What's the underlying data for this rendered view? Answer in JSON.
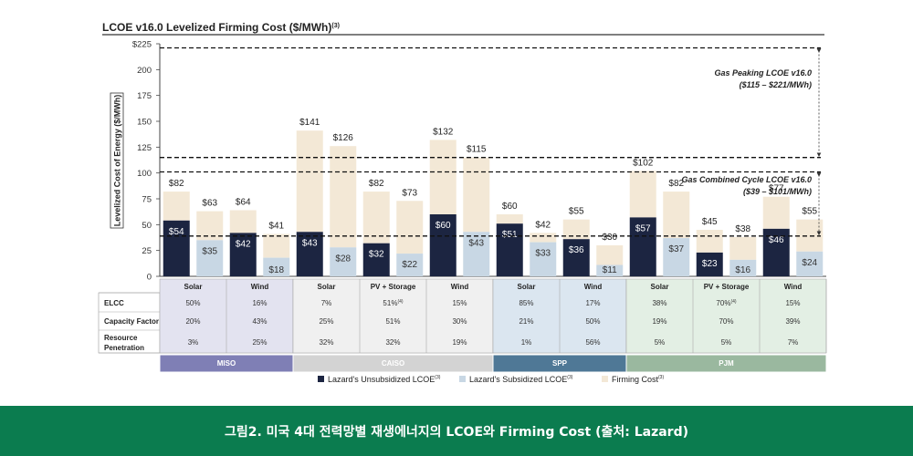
{
  "title": "LCOE v16.0 Levelized Firming Cost ($/MWh)",
  "title_sup": "(3)",
  "caption": "그림2. 미국 4대 전력망별 재생에너지의 LCOE와 Firming Cost (출처: Lazard)",
  "colors": {
    "unsubsidized": "#1c2541",
    "subsidized": "#c8d7e4",
    "firming": "#f3e8d6",
    "MISO": "#7f7fb5",
    "CAISO": "#d3d3d3",
    "SPP": "#4f7896",
    "PJM": "#9ab89f",
    "MISO_bg": "#e3e3f0",
    "CAISO_bg": "#f0f0f0",
    "SPP_bg": "#dbe6f0",
    "PJM_bg": "#e3efe4"
  },
  "chart_data": {
    "type": "bar",
    "title": "LCOE v16.0 Levelized Firming Cost ($/MWh)",
    "ylabel": "Levelized Cost of Energy ($/MWh)",
    "ylim": [
      0,
      225
    ],
    "yticks": [
      "0",
      "25",
      "50",
      "75",
      "100",
      "125",
      "150",
      "175",
      "200",
      "$225"
    ],
    "reference_bands": [
      {
        "label": "Gas Peaking LCOE v16.0",
        "range_label": "($115 – $221/MWh)",
        "low": 115,
        "high": 221
      },
      {
        "label": "Gas Combined Cycle LCOE v16.0",
        "range_label": "($39 – $101/MWh)",
        "low": 39,
        "high": 101
      }
    ],
    "legend": [
      {
        "key": "unsubsidized",
        "label": "Lazard's Unsubsidized LCOE",
        "sup": "(3)"
      },
      {
        "key": "subsidized",
        "label": "Lazard's Subsidized LCOE",
        "sup": "(3)"
      },
      {
        "key": "firming",
        "label": "Firming Cost",
        "sup": "(3)"
      }
    ],
    "row_labels": [
      "ELCC",
      "Capacity Factor",
      "Resource Penetration"
    ],
    "groups": [
      {
        "region": "MISO",
        "bars": [
          {
            "tech": "Solar",
            "base_type": "unsubsidized",
            "base": 54,
            "total": 82,
            "elcc": "50%",
            "cf": "20%",
            "pen": "3%"
          },
          {
            "tech": "Solar",
            "base_type": "subsidized",
            "base": 35,
            "total": 63
          },
          {
            "tech": "Wind",
            "base_type": "unsubsidized",
            "base": 42,
            "total": 64,
            "elcc": "16%",
            "cf": "43%",
            "pen": "25%"
          },
          {
            "tech": "Wind",
            "base_type": "subsidized",
            "base": 18,
            "total": 41
          }
        ]
      },
      {
        "region": "CAISO",
        "bars": [
          {
            "tech": "Solar",
            "base_type": "unsubsidized",
            "base": 43,
            "total": 141,
            "elcc": "7%",
            "cf": "25%",
            "pen": "32%"
          },
          {
            "tech": "Solar",
            "base_type": "subsidized",
            "base": 28,
            "total": 126
          },
          {
            "tech": "PV + Storage",
            "base_type": "unsubsidized",
            "base": 32,
            "total": 82,
            "elcc": "51%",
            "elcc_sup": "(4)",
            "cf": "51%",
            "pen": "32%"
          },
          {
            "tech": "PV + Storage",
            "base_type": "subsidized",
            "base": 22,
            "total": 73
          },
          {
            "tech": "Wind",
            "base_type": "unsubsidized",
            "base": 60,
            "total": 132,
            "elcc": "15%",
            "cf": "30%",
            "pen": "19%"
          },
          {
            "tech": "Wind",
            "base_type": "subsidized",
            "base": 43,
            "total": 115
          }
        ]
      },
      {
        "region": "SPP",
        "bars": [
          {
            "tech": "Solar",
            "base_type": "unsubsidized",
            "base": 51,
            "total": 60,
            "elcc": "85%",
            "cf": "21%",
            "pen": "1%"
          },
          {
            "tech": "Solar",
            "base_type": "subsidized",
            "base": 33,
            "total": 42
          },
          {
            "tech": "Wind",
            "base_type": "unsubsidized",
            "base": 36,
            "total": 55,
            "elcc": "17%",
            "cf": "50%",
            "pen": "56%"
          },
          {
            "tech": "Wind",
            "base_type": "subsidized",
            "base": 11,
            "total": 30
          }
        ]
      },
      {
        "region": "PJM",
        "bars": [
          {
            "tech": "Solar",
            "base_type": "unsubsidized",
            "base": 57,
            "total": 102,
            "elcc": "38%",
            "cf": "19%",
            "pen": "5%"
          },
          {
            "tech": "Solar",
            "base_type": "subsidized",
            "base": 37,
            "total": 82
          },
          {
            "tech": "PV + Storage",
            "base_type": "unsubsidized",
            "base": 23,
            "total": 45,
            "elcc": "70%",
            "elcc_sup": "(4)",
            "cf": "70%",
            "pen": "5%"
          },
          {
            "tech": "PV + Storage",
            "base_type": "subsidized",
            "base": 16,
            "total": 38
          },
          {
            "tech": "Wind",
            "base_type": "unsubsidized",
            "base": 46,
            "total": 77,
            "elcc": "15%",
            "cf": "39%",
            "pen": "7%"
          },
          {
            "tech": "Wind",
            "base_type": "subsidized",
            "base": 24,
            "total": 55
          }
        ]
      }
    ]
  }
}
